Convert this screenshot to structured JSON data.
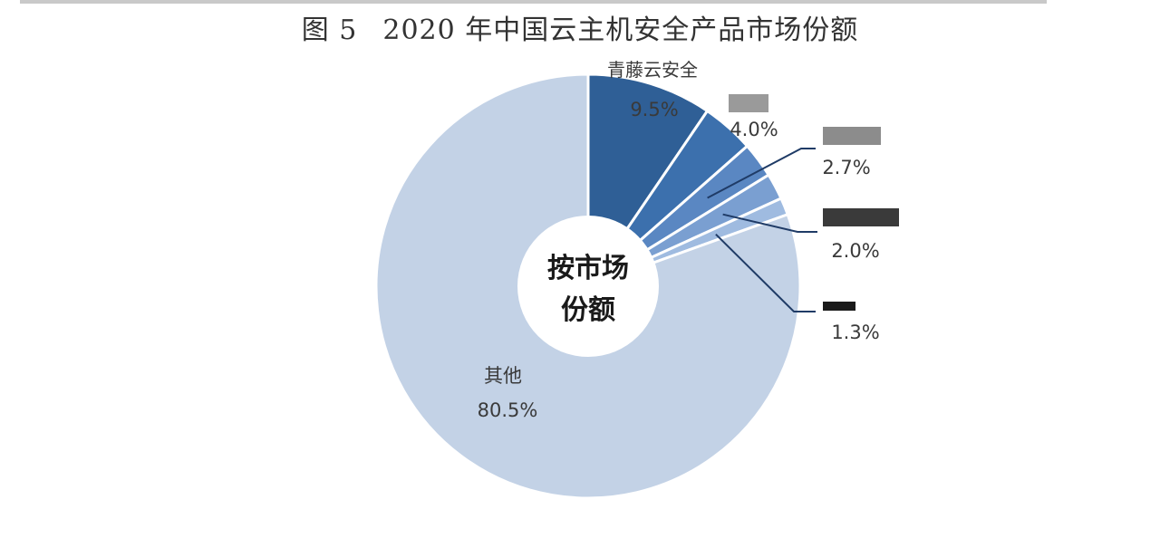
{
  "figure": {
    "number": "图 5",
    "title": "2020 年中国云主机安全产品市场份额"
  },
  "chart_data": {
    "type": "pie",
    "donut": true,
    "center_label": [
      "按市场",
      "份额"
    ],
    "slices": [
      {
        "name": "青藤云安全",
        "value": 9.5,
        "label": "9.5%",
        "color": "#2f5f96"
      },
      {
        "name": "",
        "value": 4.0,
        "label": "4.0%",
        "color": "#3c70ad"
      },
      {
        "name": "",
        "value": 2.7,
        "label": "2.7%",
        "color": "#5a87c2"
      },
      {
        "name": "",
        "value": 2.0,
        "label": "2.0%",
        "color": "#7a9fd1"
      },
      {
        "name": "",
        "value": 1.3,
        "label": "1.3%",
        "color": "#9fbbe0"
      },
      {
        "name": "其他",
        "value": 80.5,
        "label": "80.5%",
        "color": "#c3d2e6"
      }
    ]
  }
}
